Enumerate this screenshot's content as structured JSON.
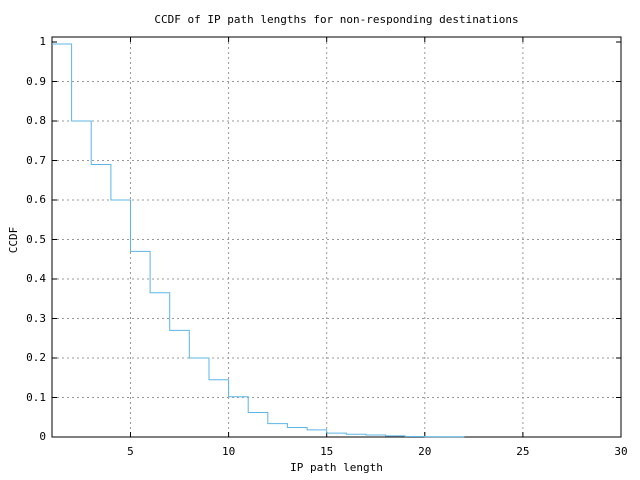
{
  "chart_data": {
    "type": "line",
    "line_style": "steps-post",
    "title": "CCDF of IP path lengths for non-responding destinations",
    "xlabel": "IP path length",
    "ylabel": "CCDF",
    "xlim": [
      1,
      30
    ],
    "ylim": [
      0,
      1
    ],
    "grid": true,
    "legend": "none",
    "background_color": "#ffffff",
    "border_color": "#000000",
    "grid_color": "#999999",
    "line_color": "#5cb5e5",
    "xticks": [
      {
        "value": 5,
        "label": "5"
      },
      {
        "value": 10,
        "label": "10"
      },
      {
        "value": 15,
        "label": "15"
      },
      {
        "value": 20,
        "label": "20"
      },
      {
        "value": 25,
        "label": "25"
      },
      {
        "value": 30,
        "label": "30"
      }
    ],
    "yticks": [
      {
        "value": 0,
        "label": "0"
      },
      {
        "value": 0.1,
        "label": "0.1"
      },
      {
        "value": 0.2,
        "label": "0.2"
      },
      {
        "value": 0.3,
        "label": "0.3"
      },
      {
        "value": 0.4,
        "label": "0.4"
      },
      {
        "value": 0.5,
        "label": "0.5"
      },
      {
        "value": 0.6,
        "label": "0.6"
      },
      {
        "value": 0.7,
        "label": "0.7"
      },
      {
        "value": 0.8,
        "label": "0.8"
      },
      {
        "value": 0.9,
        "label": "0.9"
      },
      {
        "value": 1,
        "label": "1"
      }
    ],
    "points": [
      [
        1,
        0.995
      ],
      [
        2,
        0.8
      ],
      [
        3,
        0.69
      ],
      [
        4,
        0.6
      ],
      [
        5,
        0.47
      ],
      [
        6,
        0.365
      ],
      [
        7,
        0.27
      ],
      [
        8,
        0.2
      ],
      [
        9,
        0.145
      ],
      [
        10,
        0.102
      ],
      [
        11,
        0.062
      ],
      [
        12,
        0.034
      ],
      [
        13,
        0.024
      ],
      [
        14,
        0.018
      ],
      [
        15,
        0.01
      ],
      [
        16,
        0.007
      ],
      [
        17,
        0.005
      ],
      [
        18,
        0.0028
      ],
      [
        19,
        0.0013
      ],
      [
        20,
        0.0008
      ],
      [
        21,
        0.0004
      ],
      [
        22,
        0
      ]
    ]
  }
}
